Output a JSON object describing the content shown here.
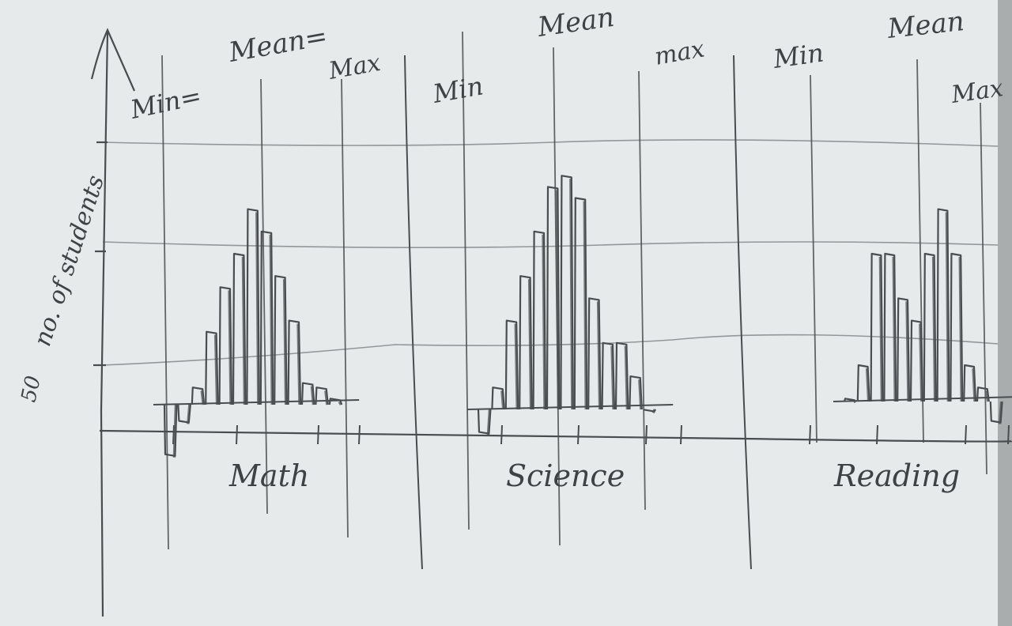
{
  "colors": {
    "paper": "#e6eaea",
    "pencil": "#4a4d4f",
    "grid": "#c6d0d4"
  },
  "chart_data": {
    "type": "bar",
    "style": "hand-drawn pencil histograms",
    "grid": true,
    "ylabel": "no. of students",
    "yticks": [
      {
        "label": "50",
        "value": 50
      },
      {
        "label": "",
        "value": 100
      },
      {
        "label": "",
        "value": 150
      }
    ],
    "ylim": [
      0,
      175
    ],
    "panels": [
      {
        "subject": "Math",
        "labels": {
          "min": "Min=",
          "mean": "Mean=",
          "max": "Max"
        },
        "bars": [
          10,
          25,
          40,
          65,
          85,
          100,
          120,
          110,
          90,
          70,
          42,
          40,
          35
        ]
      },
      {
        "subject": "Science",
        "labels": {
          "min": "Min",
          "mean": "Mean",
          "max": "max"
        },
        "bars": [
          20,
          40,
          70,
          90,
          110,
          130,
          135,
          125,
          80,
          60,
          60,
          45,
          30
        ]
      },
      {
        "subject": "Reading",
        "labels": {
          "min": "Min",
          "mean": "Mean",
          "max": "Max"
        },
        "bars": [
          35,
          50,
          100,
          100,
          80,
          70,
          100,
          120,
          100,
          50,
          40,
          25
        ]
      }
    ]
  }
}
